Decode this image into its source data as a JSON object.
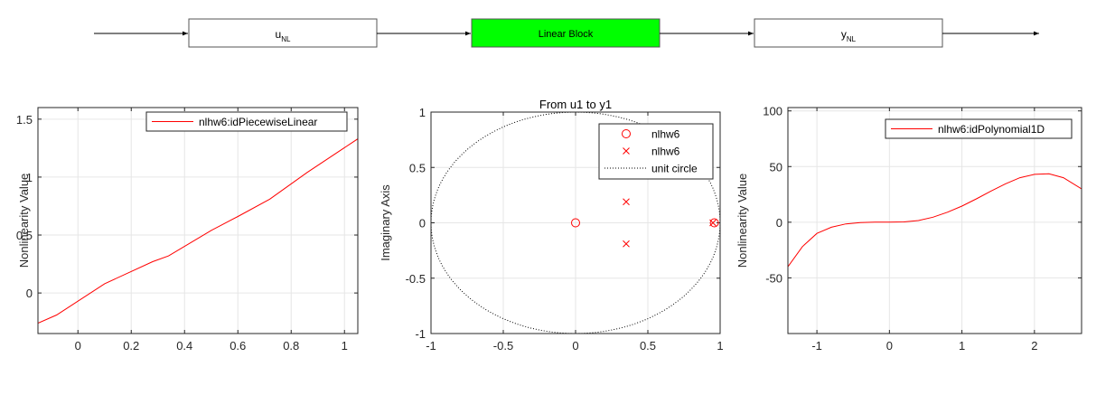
{
  "block_diagram": {
    "input_block": {
      "label": "u",
      "sub": "NL"
    },
    "linear_block": {
      "label": "Linear Block",
      "color": "#00ff00"
    },
    "output_block": {
      "label": "y",
      "sub": "NL"
    }
  },
  "chart_data": [
    {
      "type": "line",
      "xlabel": "",
      "ylabel": "Nonlinearity Value",
      "xlim": [
        -0.15,
        1.05
      ],
      "ylim": [
        -0.35,
        1.6
      ],
      "xticks": [
        0,
        0.2,
        0.4,
        0.6,
        0.8,
        1
      ],
      "xtick_labels": [
        "0",
        "0.2",
        "0.4",
        "0.6",
        "0.8",
        "1"
      ],
      "yticks": [
        0,
        0.5,
        1,
        1.5
      ],
      "ytick_labels": [
        "0",
        "0.5",
        "1",
        "1.5"
      ],
      "grid": true,
      "legend_position": "top-right",
      "series": [
        {
          "name": "nlhw6:idPiecewiseLinear",
          "color": "#ff0000",
          "x": [
            -0.15,
            -0.08,
            0.1,
            0.28,
            0.34,
            0.5,
            0.6,
            0.72,
            0.86,
            1.05
          ],
          "y": [
            -0.26,
            -0.19,
            0.08,
            0.27,
            0.32,
            0.54,
            0.66,
            0.81,
            1.04,
            1.33
          ]
        }
      ]
    },
    {
      "type": "scatter",
      "title": "From u1 to y1",
      "xlabel": "",
      "ylabel": "Imaginary Axis",
      "xlim": [
        -1,
        1
      ],
      "ylim": [
        -1,
        1
      ],
      "xticks": [
        -1,
        -0.5,
        0,
        0.5,
        1
      ],
      "xtick_labels": [
        "-1",
        "-0.5",
        "0",
        "0.5",
        "1"
      ],
      "yticks": [
        -1,
        -0.5,
        0,
        0.5,
        1
      ],
      "ytick_labels": [
        "-1",
        "-0.5",
        "0",
        "0.5",
        "1"
      ],
      "grid": true,
      "legend_position": "top-right",
      "zeros": {
        "name": "nlhw6",
        "marker": "circle",
        "color": "#ff0000",
        "x": [
          0,
          0.96
        ],
        "y": [
          0,
          0
        ]
      },
      "poles": {
        "name": "nlhw6",
        "marker": "x",
        "color": "#ff0000",
        "x": [
          0.35,
          0.35,
          0.95
        ],
        "y": [
          0.19,
          -0.19,
          0
        ]
      },
      "reference": {
        "name": "unit circle",
        "style": "dotted",
        "color": "#000000"
      }
    },
    {
      "type": "line",
      "xlabel": "",
      "ylabel": "Nonlinearity Value",
      "xlim": [
        -1.4,
        2.65
      ],
      "ylim": [
        -100,
        103
      ],
      "xticks": [
        -1,
        0,
        1,
        2
      ],
      "xtick_labels": [
        "-1",
        "0",
        "1",
        "2"
      ],
      "yticks": [
        -50,
        0,
        50,
        100
      ],
      "ytick_labels": [
        "-50",
        "0",
        "50",
        "100"
      ],
      "grid": true,
      "legend_position": "top-right",
      "series": [
        {
          "name": "nlhw6:idPolynomial1D",
          "color": "#ff0000",
          "x": [
            -1.4,
            -1.2,
            -1.0,
            -0.8,
            -0.6,
            -0.4,
            -0.2,
            0.0,
            0.2,
            0.4,
            0.6,
            0.8,
            1.0,
            1.2,
            1.4,
            1.6,
            1.8,
            2.0,
            2.2,
            2.4,
            2.65
          ],
          "y": [
            -40,
            -22,
            -10,
            -4.5,
            -1.5,
            -0.3,
            0,
            0,
            0.3,
            1.5,
            4.5,
            9,
            14.5,
            21,
            28,
            34.5,
            40,
            43,
            43.5,
            40,
            30
          ]
        }
      ]
    }
  ]
}
